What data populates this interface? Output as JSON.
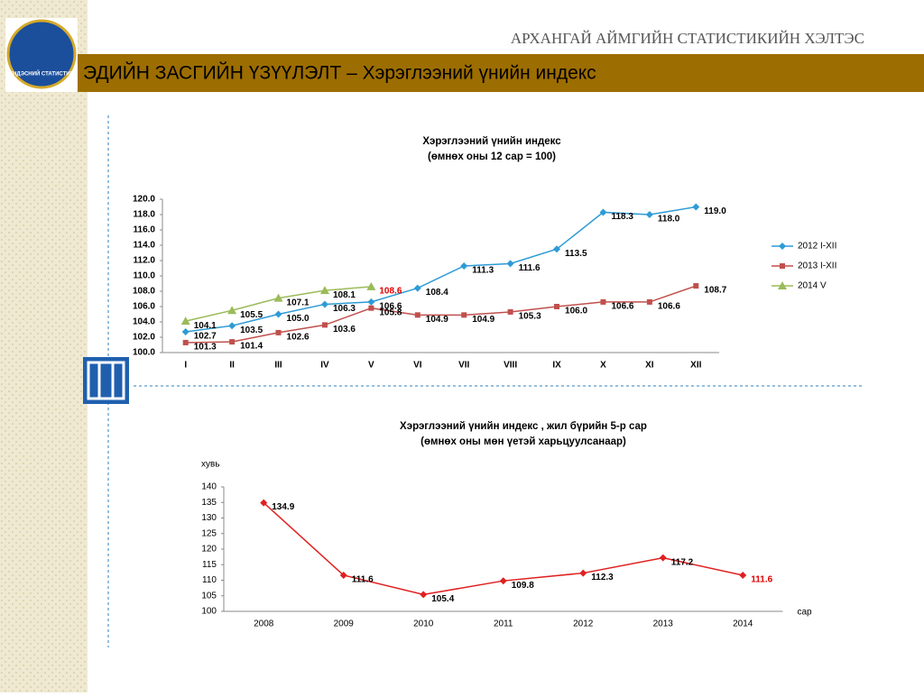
{
  "header": {
    "organization": "АРХАНГАЙ АЙМГИЙН СТАТИСТИКИЙН ХЭЛТЭС",
    "title": "ЭДИЙН ЗАСГИЙН ҮЗҮҮЛЭЛТ – Хэрэглээний үнийн индекс",
    "logo_text": "ҮНДЭСНИЙ СТАТИСТИК"
  },
  "chart_data": [
    {
      "type": "line",
      "title": "Хэрэглээний үнийн индекс",
      "subtitle": "(өмнөх оны 12 сар = 100)",
      "categories": [
        "I",
        "II",
        "III",
        "IV",
        "V",
        "VI",
        "VII",
        "VIII",
        "IX",
        "X",
        "XI",
        "XII"
      ],
      "ylim": [
        100,
        120
      ],
      "yticks": [
        {
          "value": 100,
          "label": "100.0"
        },
        {
          "value": 102,
          "label": "102.0"
        },
        {
          "value": 104,
          "label": "104.0"
        },
        {
          "value": 106,
          "label": "106.0"
        },
        {
          "value": 108,
          "label": "108.0"
        },
        {
          "value": 110,
          "label": "110.0"
        },
        {
          "value": 112,
          "label": "112.0"
        },
        {
          "value": 114,
          "label": "114.0"
        },
        {
          "value": 116,
          "label": "116.0"
        },
        {
          "value": 118,
          "label": "118.0"
        },
        {
          "value": 120,
          "label": "120.0"
        }
      ],
      "legend": "right",
      "series": [
        {
          "name": "2012 I-XII",
          "color": "#2e9bd6",
          "marker": "diamond",
          "values": [
            102.7,
            103.5,
            105.0,
            106.3,
            106.6,
            108.4,
            111.3,
            111.6,
            113.5,
            118.3,
            118.0,
            119.0
          ],
          "value_labels": [
            "102.7",
            "103.5",
            "105.0",
            "106.3",
            "106.6",
            "108.4",
            "111.3",
            "111.6",
            "113.5",
            "118.3",
            "118.0",
            "119.0"
          ]
        },
        {
          "name": "2013 I-XII",
          "color": "#c0504d",
          "marker": "square",
          "values": [
            101.3,
            101.4,
            102.6,
            103.6,
            105.8,
            104.9,
            104.9,
            105.3,
            106.0,
            106.6,
            106.6,
            108.7
          ],
          "value_labels": [
            "101.3",
            "101.4",
            "102.6",
            "103.6",
            "105.8",
            "104.9",
            "104.9",
            "105.3",
            "106.0",
            "106.6",
            "106.6",
            "108.7"
          ]
        },
        {
          "name": "2014 V",
          "color": "#9bbb59",
          "marker": "triangle",
          "values": [
            104.1,
            105.5,
            107.1,
            108.1,
            108.6,
            null,
            null,
            null,
            null,
            null,
            null,
            null
          ],
          "value_labels": [
            "104.1",
            "105.5",
            "107.1",
            "108.1",
            "108.6",
            null,
            null,
            null,
            null,
            null,
            null,
            null
          ]
        }
      ]
    },
    {
      "type": "line",
      "title": "Хэрэглээний үнийн индекс , жил бүрийн 5-р сар",
      "subtitle": "(өмнөх оны мөн үетэй харьцуулсанаар)",
      "y_label": "хувь",
      "x_label": "сар",
      "categories": [
        "2008",
        "2009",
        "2010",
        "2011",
        "2012",
        "2013",
        "2014"
      ],
      "ylim": [
        100,
        140
      ],
      "yticks": [
        100,
        105,
        110,
        115,
        120,
        125,
        130,
        135,
        140
      ],
      "series": [
        {
          "color": "#e02020",
          "marker": "diamond",
          "values": [
            134.9,
            111.6,
            105.4,
            109.8,
            112.3,
            117.2,
            111.6
          ]
        }
      ]
    }
  ]
}
